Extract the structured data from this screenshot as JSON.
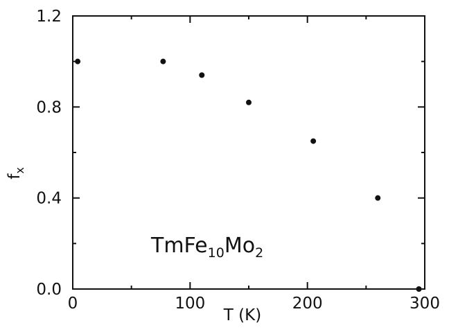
{
  "chart_data": {
    "type": "scatter",
    "xlabel": "T (K)",
    "ylabel": "f",
    "ylabel_subscript": "x",
    "xlim": [
      0,
      300
    ],
    "ylim": [
      0.0,
      1.2
    ],
    "xticks": [
      0,
      100,
      200,
      300
    ],
    "xtick_labels": [
      "0",
      "100",
      "200",
      "300"
    ],
    "yticks": [
      0.0,
      0.4,
      0.8,
      1.2
    ],
    "ytick_labels": [
      "0.0",
      "0.4",
      "0.8",
      "1.2"
    ],
    "grid": false,
    "marker_color": "#111111",
    "axis_color": "#111111",
    "series": [
      {
        "x": [
          4.2,
          77,
          110,
          150,
          205,
          260,
          295
        ],
        "y": [
          1.0,
          1.0,
          0.94,
          0.82,
          0.65,
          0.4,
          0.0
        ]
      }
    ],
    "annotation": {
      "parts": [
        {
          "text": "TmFe",
          "sub": false
        },
        {
          "text": "10",
          "sub": true
        },
        {
          "text": "Mo",
          "sub": false
        },
        {
          "text": "2",
          "sub": true
        }
      ]
    }
  }
}
